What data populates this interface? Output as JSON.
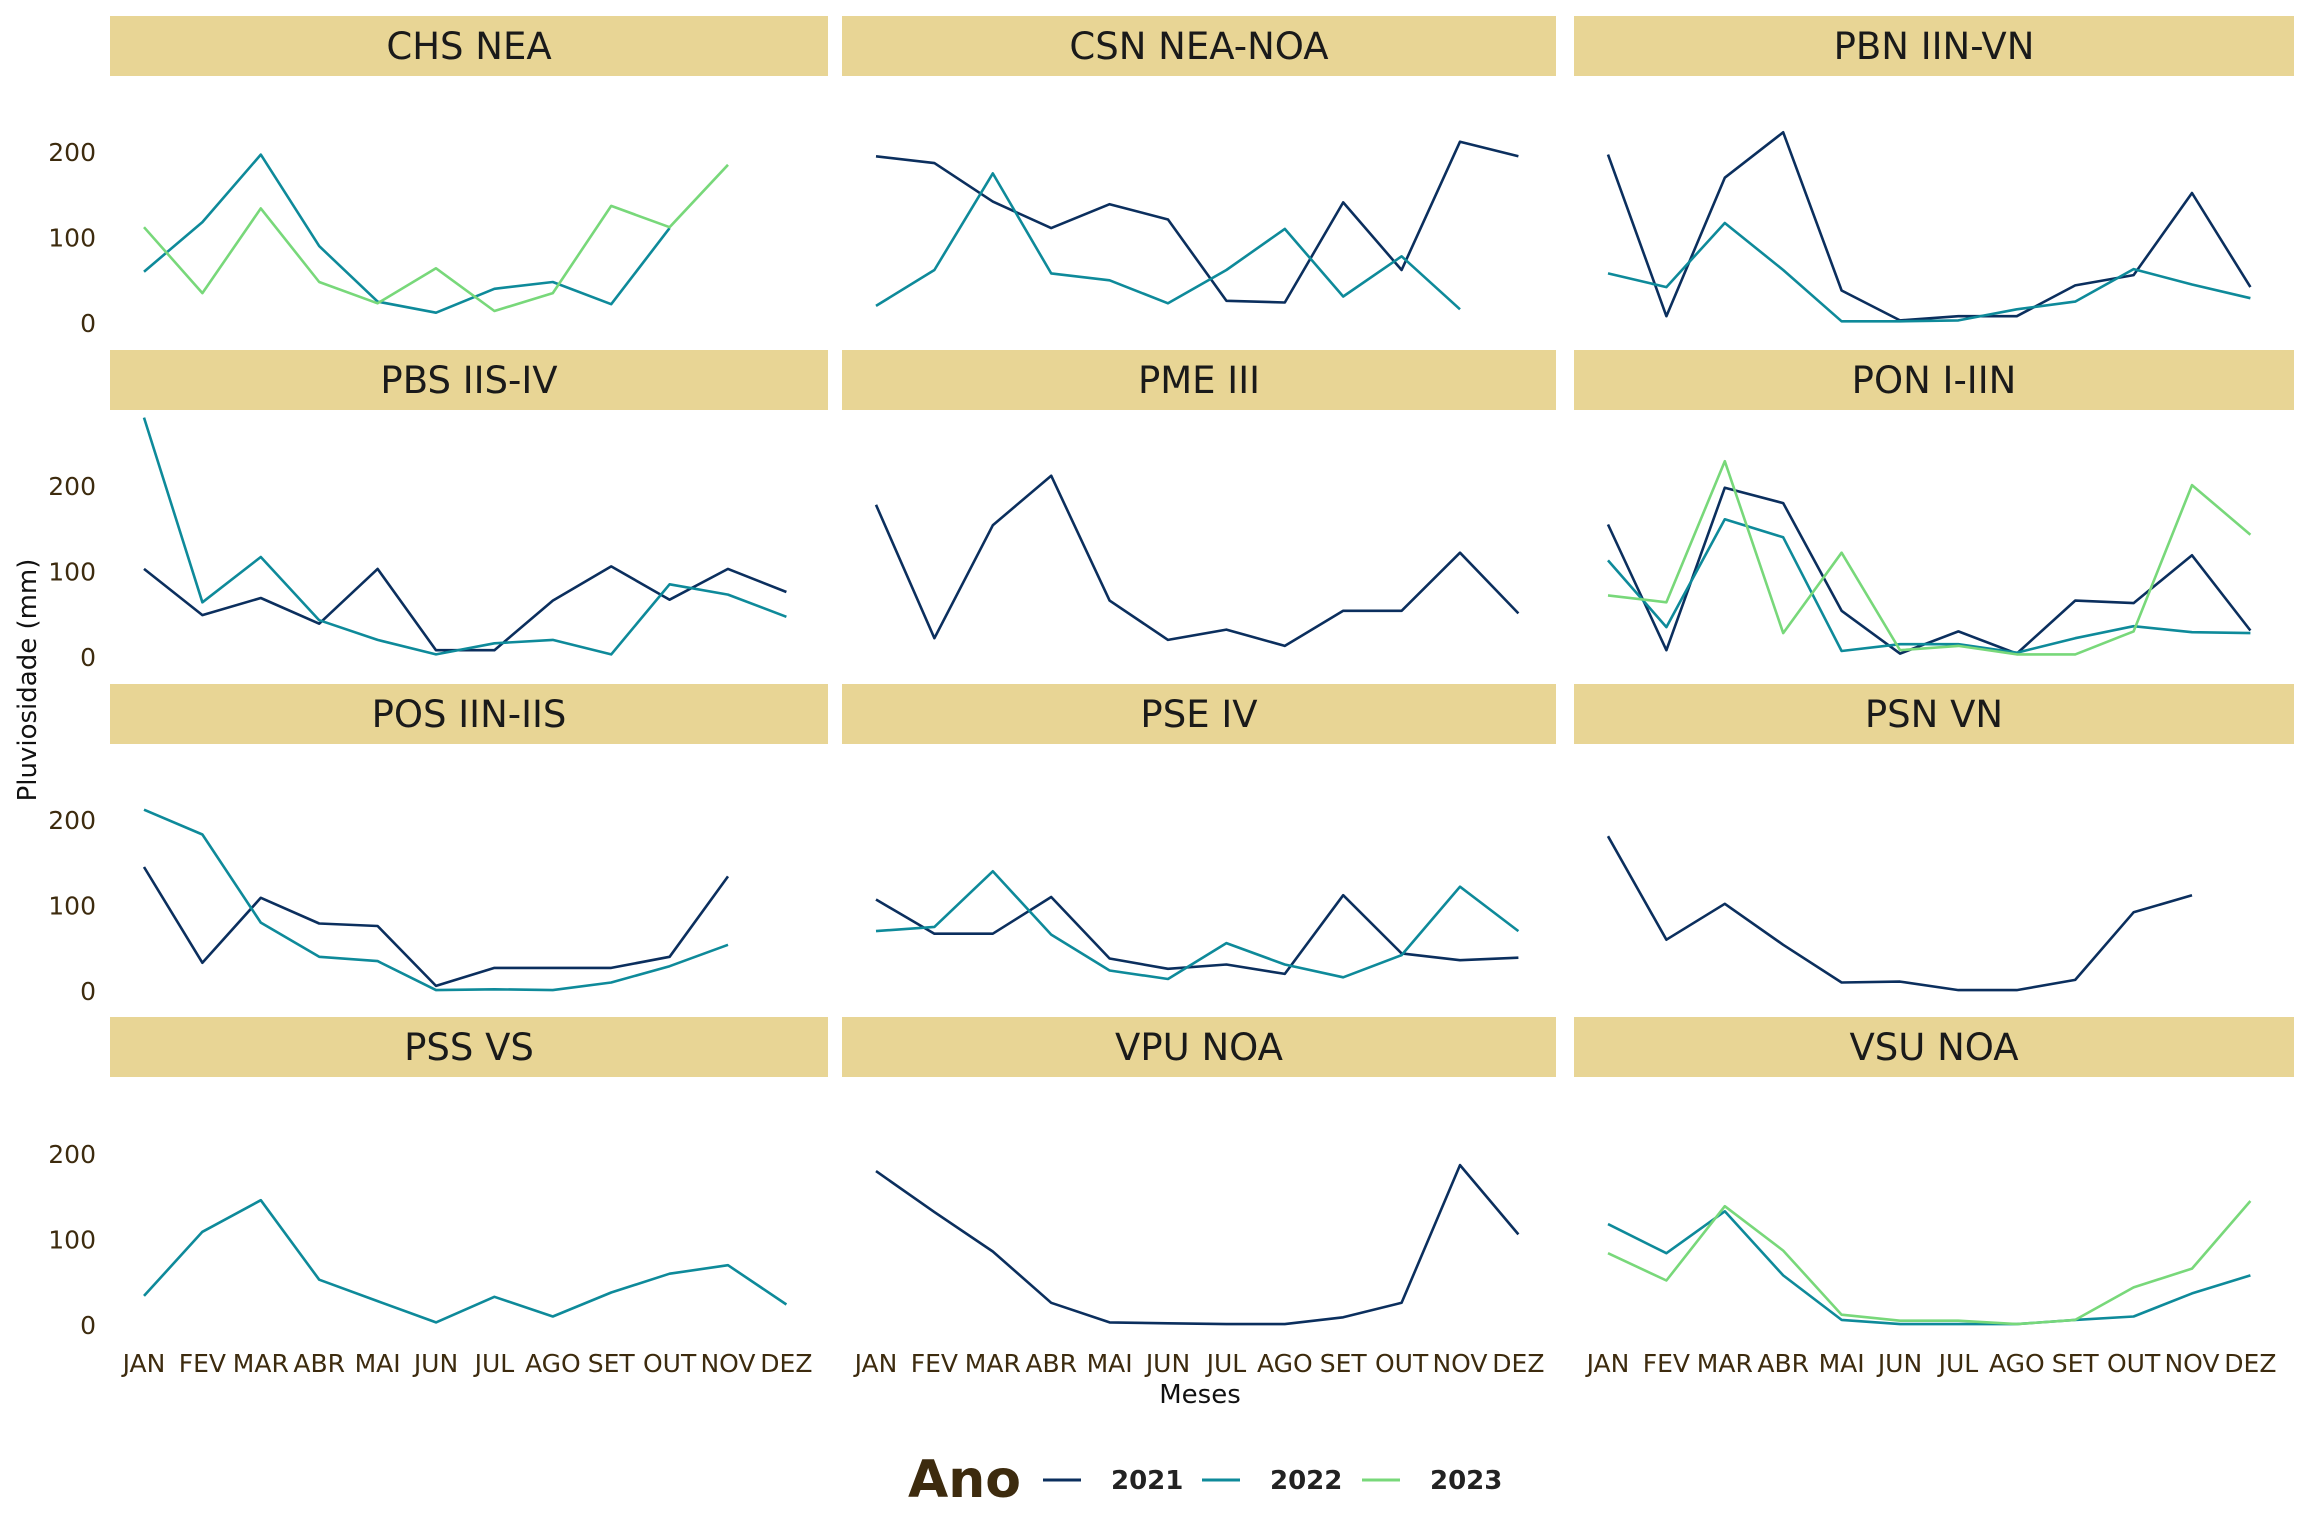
{
  "colors": {
    "strip_background": "#E8D595",
    "axis_text": "#3D2B0E",
    "series": {
      "2021": "#0B2F5E",
      "2022": "#0E8A9A",
      "2023": "#78D87A"
    }
  },
  "chart_data": {
    "type": "line",
    "layout": "facet grid 4 rows x 3 columns, shared axes",
    "xlabel": "Meses",
    "ylabel": "Pluviosidade (mm)",
    "categories": [
      "JAN",
      "FEV",
      "MAR",
      "ABR",
      "MAI",
      "JUN",
      "JUL",
      "AGO",
      "SET",
      "OUT",
      "NOV",
      "DEZ"
    ],
    "y_ticks": [
      0,
      100,
      200
    ],
    "ylim": [
      0,
      280
    ],
    "grid": false,
    "legend": {
      "title": "Ano",
      "position": "bottom",
      "entries": [
        "2021",
        "2022",
        "2023"
      ]
    },
    "panels": [
      {
        "title": "CHS NEA",
        "series": [
          {
            "name": "2022",
            "values": [
              60,
              118,
              197,
              90,
              25,
              12,
              40,
              48,
              22,
              111,
              null,
              null
            ]
          },
          {
            "name": "2023",
            "values": [
              112,
              35,
              134,
              48,
              23,
              64,
              14,
              35,
              137,
              112,
              185,
              null
            ]
          }
        ]
      },
      {
        "title": "CSN NEA-NOA",
        "series": [
          {
            "name": "2021",
            "values": [
              195,
              187,
              142,
              111,
              139,
              121,
              26,
              24,
              141,
              62,
              212,
              195
            ]
          },
          {
            "name": "2022",
            "values": [
              20,
              62,
              175,
              58,
              50,
              23,
              62,
              110,
              31,
              78,
              16,
              null
            ]
          }
        ]
      },
      {
        "title": "PBN IIN-VN",
        "series": [
          {
            "name": "2021",
            "values": [
              197,
              8,
              170,
              223,
              38,
              3,
              8,
              8,
              44,
              56,
              152,
              42
            ]
          },
          {
            "name": "2022",
            "values": [
              58,
              42,
              117,
              62,
              2,
              2,
              3,
              16,
              25,
              63,
              45,
              29
            ]
          }
        ]
      },
      {
        "title": "PBS IIS-IV",
        "series": [
          {
            "name": "2021",
            "values": [
              103,
              49,
              69,
              39,
              103,
              8,
              8,
              66,
              106,
              67,
              103,
              76
            ]
          },
          {
            "name": "2022",
            "values": [
              280,
              64,
              117,
              43,
              20,
              3,
              16,
              20,
              3,
              85,
              73,
              47
            ]
          }
        ]
      },
      {
        "title": "PME III",
        "series": [
          {
            "name": "2021",
            "values": [
              178,
              22,
              154,
              212,
              66,
              20,
              32,
              13,
              54,
              54,
              122,
              51
            ]
          }
        ]
      },
      {
        "title": "PON I-IIN",
        "series": [
          {
            "name": "2021",
            "values": [
              155,
              8,
              198,
              180,
              54,
              4,
              30,
              4,
              66,
              63,
              119,
              31
            ]
          },
          {
            "name": "2022",
            "values": [
              113,
              35,
              161,
              140,
              7,
              15,
              15,
              5,
              22,
              36,
              29,
              28
            ]
          },
          {
            "name": "2023",
            "values": [
              72,
              64,
              229,
              28,
              122,
              8,
              13,
              3,
              3,
              30,
              201,
              143
            ]
          }
        ]
      },
      {
        "title": "POS IIN-IIS",
        "series": [
          {
            "name": "2021",
            "values": [
              145,
              33,
              109,
              79,
              76,
              6,
              27,
              27,
              27,
              40,
              134,
              null
            ]
          },
          {
            "name": "2022",
            "values": [
              212,
              183,
              80,
              40,
              35,
              1,
              2,
              1,
              10,
              29,
              54,
              null
            ]
          }
        ]
      },
      {
        "title": "PSE IV",
        "series": [
          {
            "name": "2021",
            "values": [
              107,
              67,
              67,
              110,
              38,
              26,
              31,
              20,
              112,
              44,
              36,
              39
            ]
          },
          {
            "name": "2022",
            "values": [
              70,
              75,
              140,
              66,
              24,
              14,
              56,
              31,
              16,
              42,
              122,
              70
            ]
          }
        ]
      },
      {
        "title": "PSN VN",
        "series": [
          {
            "name": "2021",
            "values": [
              181,
              60,
              102,
              54,
              10,
              11,
              1,
              1,
              13,
              92,
              112,
              null
            ]
          }
        ]
      },
      {
        "title": "PSS VS",
        "series": [
          {
            "name": "2022",
            "values": [
              34,
              109,
              146,
              53,
              28,
              3,
              33,
              10,
              38,
              60,
              70,
              24
            ]
          }
        ]
      },
      {
        "title": "VPU NOA",
        "series": [
          {
            "name": "2021",
            "values": [
              180,
              132,
              86,
              26,
              3,
              2,
              1,
              1,
              9,
              26,
              187,
              106
            ]
          }
        ]
      },
      {
        "title": "VSU NOA",
        "series": [
          {
            "name": "2022",
            "values": [
              118,
              84,
              133,
              58,
              6,
              1,
              1,
              1,
              6,
              10,
              37,
              58
            ]
          },
          {
            "name": "2023",
            "values": [
              84,
              52,
              139,
              87,
              12,
              5,
              5,
              1,
              6,
              44,
              66,
              145
            ]
          }
        ]
      }
    ]
  }
}
